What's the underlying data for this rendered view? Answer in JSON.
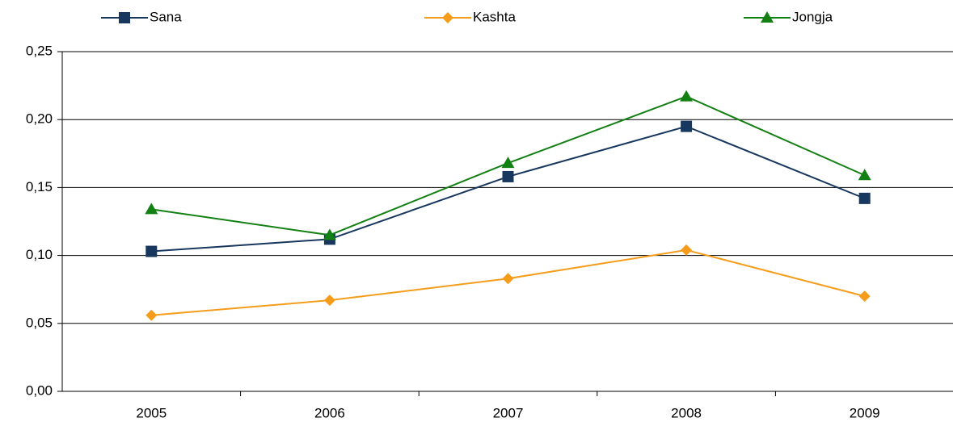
{
  "chart_data": {
    "type": "line",
    "categories": [
      "2005",
      "2006",
      "2007",
      "2008",
      "2009"
    ],
    "series": [
      {
        "name": "Sana",
        "color": "#17375e",
        "marker": "square",
        "values": [
          0.103,
          0.112,
          0.158,
          0.195,
          0.142
        ]
      },
      {
        "name": "Kashta",
        "color": "#f59d1b",
        "marker": "diamond",
        "values": [
          0.056,
          0.067,
          0.083,
          0.104,
          0.07
        ]
      },
      {
        "name": "Jongja",
        "color": "#138013",
        "marker": "triangle",
        "values": [
          0.134,
          0.115,
          0.168,
          0.217,
          0.159
        ]
      }
    ],
    "ylim": [
      0,
      0.25
    ],
    "yticks": [
      {
        "value": 0,
        "label": "0,00"
      },
      {
        "value": 0.05,
        "label": "0,05"
      },
      {
        "value": 0.1,
        "label": "0,10"
      },
      {
        "value": 0.15,
        "label": "0,15"
      },
      {
        "value": 0.2,
        "label": "0,20"
      },
      {
        "value": 0.25,
        "label": "0,25"
      }
    ],
    "grid": true,
    "legend": "top"
  }
}
